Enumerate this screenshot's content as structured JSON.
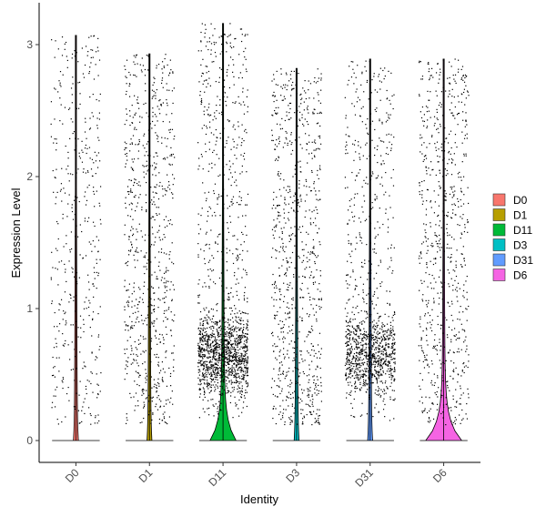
{
  "chart_data": {
    "type": "violin",
    "title": "",
    "xlabel": "Identity",
    "ylabel": "Expression Level",
    "categories": [
      "D0",
      "D1",
      "D11",
      "D3",
      "D31",
      "D6"
    ],
    "ylim": [
      -0.18,
      3.3
    ],
    "yticks": [
      0,
      1,
      2,
      3
    ],
    "colors": [
      "#F8766D",
      "#B79F00",
      "#00BA38",
      "#00BFC4",
      "#619CFF",
      "#F564E3"
    ],
    "series": [
      {
        "name": "D0",
        "max": 3.07,
        "jitter_count": 430,
        "dense_low": false,
        "violin_max_width": 0.03
      },
      {
        "name": "D1",
        "max": 2.93,
        "jitter_count": 760,
        "dense_low": false,
        "violin_max_width": 0.03
      },
      {
        "name": "D11",
        "max": 3.16,
        "jitter_count": 1700,
        "dense_low": true,
        "violin_max_width": 0.35
      },
      {
        "name": "D3",
        "max": 2.82,
        "jitter_count": 820,
        "dense_low": false,
        "violin_max_width": 0.03
      },
      {
        "name": "D31",
        "max": 2.89,
        "jitter_count": 1250,
        "dense_low": true,
        "violin_max_width": 0.03
      },
      {
        "name": "D6",
        "max": 2.89,
        "jitter_count": 720,
        "dense_low": false,
        "violin_max_width": 0.5
      }
    ],
    "grid": false,
    "legend_position": "right"
  }
}
